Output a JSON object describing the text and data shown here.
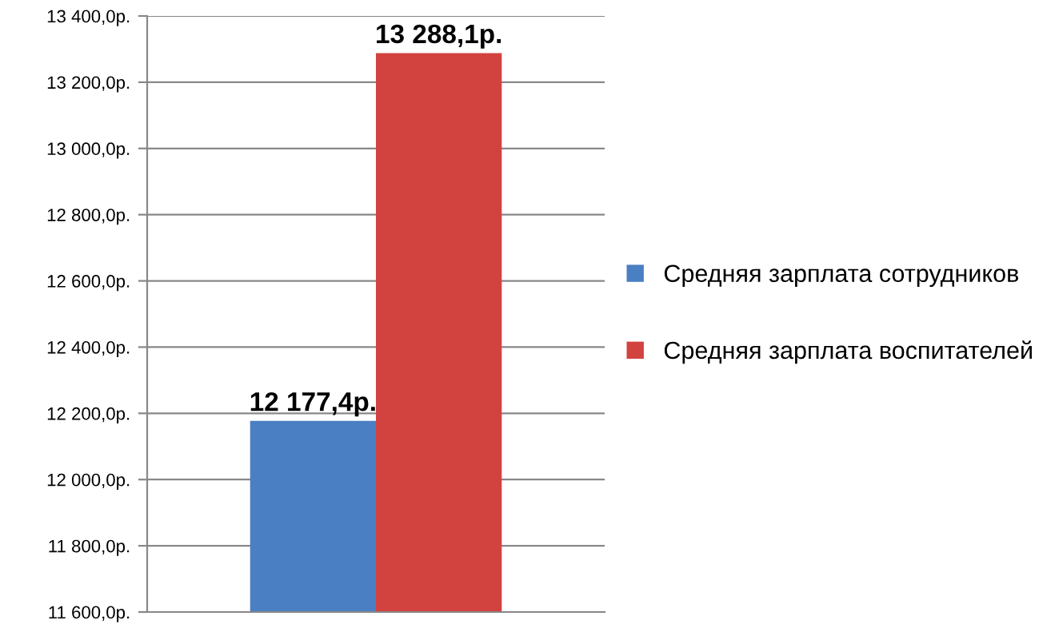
{
  "chart_data": {
    "type": "bar",
    "categories": [
      null
    ],
    "series": [
      {
        "name": "Средняя зарплата сотрудников",
        "color": "#4a7fc4",
        "values": [
          12177.4
        ],
        "value_labels": [
          "12 177,4р."
        ]
      },
      {
        "name": "Средняя зарплата воспитателей",
        "color": "#d2433f",
        "values": [
          13288.1
        ],
        "value_labels": [
          "13 288,1р."
        ]
      }
    ],
    "ylim": [
      11600,
      13400
    ],
    "yticks": [
      {
        "value": 11600,
        "label": "11 600,0р."
      },
      {
        "value": 11800,
        "label": "11 800,0р."
      },
      {
        "value": 12000,
        "label": "12 000,0р."
      },
      {
        "value": 12200,
        "label": "12 200,0р."
      },
      {
        "value": 12400,
        "label": "12 400,0р."
      },
      {
        "value": 12600,
        "label": "12 600,0р."
      },
      {
        "value": 12800,
        "label": "12 800,0р."
      },
      {
        "value": 13000,
        "label": "13 000,0р."
      },
      {
        "value": 13200,
        "label": "13 200,0р."
      },
      {
        "value": 13400,
        "label": "13 400,0р."
      }
    ],
    "grid": "y",
    "legend": "right"
  }
}
